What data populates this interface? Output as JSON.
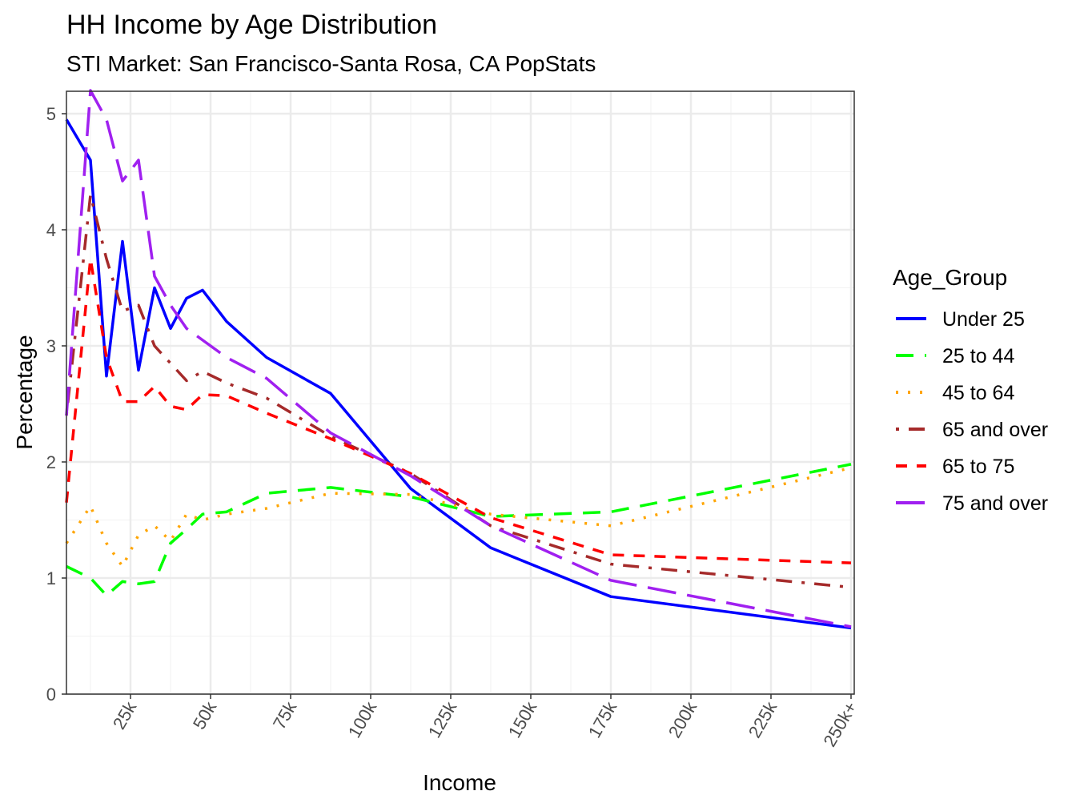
{
  "chart_data": {
    "type": "line",
    "title": "HH Income by Age Distribution",
    "subtitle": "STI Market: San Francisco-Santa Rosa, CA PopStats",
    "xlabel": "Income",
    "ylabel": "Percentage",
    "xlim": [
      5,
      250
    ],
    "ylim": [
      0,
      5.2
    ],
    "x_ticks": [
      25,
      50,
      75,
      100,
      125,
      150,
      175,
      200,
      225,
      250
    ],
    "x_tick_labels": [
      "25k",
      "50k",
      "75k",
      "100k",
      "125k",
      "150k",
      "175k",
      "200k",
      "225k",
      "250k+"
    ],
    "y_ticks": [
      0,
      1,
      2,
      3,
      4,
      5
    ],
    "y_tick_labels": [
      "0",
      "1",
      "2",
      "3",
      "4",
      "5"
    ],
    "grid": true,
    "legend": {
      "title": "Age_Group",
      "position": "right"
    },
    "x": [
      5,
      12.5,
      17.5,
      22.5,
      27.5,
      32.5,
      37.5,
      42.5,
      47.5,
      55,
      67.5,
      87.5,
      112.5,
      137.5,
      175,
      250
    ],
    "series": [
      {
        "name": "Under 25",
        "color": "#0000FF",
        "dash": "solid",
        "values": [
          4.95,
          4.6,
          2.74,
          3.9,
          2.79,
          3.5,
          3.15,
          3.41,
          3.48,
          3.21,
          2.9,
          2.59,
          1.77,
          1.26,
          0.84,
          0.57
        ]
      },
      {
        "name": "25 to 44",
        "color": "#00FF00",
        "dash": "dashed",
        "values": [
          1.1,
          1.0,
          0.85,
          0.97,
          0.95,
          0.97,
          1.3,
          1.42,
          1.55,
          1.57,
          1.73,
          1.78,
          1.7,
          1.53,
          1.57,
          1.98
        ]
      },
      {
        "name": "45 to 64",
        "color": "#FFA500",
        "dash": "dotted",
        "values": [
          1.3,
          1.62,
          1.3,
          1.1,
          1.37,
          1.45,
          1.32,
          1.55,
          1.5,
          1.55,
          1.6,
          1.73,
          1.72,
          1.55,
          1.45,
          1.95
        ]
      },
      {
        "name": "65 and over",
        "color": "#A52A2A",
        "dash": "dotdash",
        "values": [
          2.4,
          4.3,
          3.75,
          3.3,
          3.35,
          3.0,
          2.85,
          2.7,
          2.78,
          2.68,
          2.55,
          2.22,
          1.9,
          1.45,
          1.12,
          0.92
        ]
      },
      {
        "name": "65 to 75",
        "color": "#FF0000",
        "dash": "shortdash",
        "values": [
          1.65,
          3.75,
          2.9,
          2.52,
          2.52,
          2.65,
          2.48,
          2.45,
          2.58,
          2.57,
          2.42,
          2.2,
          1.9,
          1.52,
          1.2,
          1.13
        ]
      },
      {
        "name": "75 and over",
        "color": "#A020F0",
        "dash": "longdash",
        "values": [
          2.4,
          5.2,
          4.95,
          4.42,
          4.6,
          3.6,
          3.35,
          3.15,
          3.05,
          2.9,
          2.72,
          2.25,
          1.88,
          1.45,
          0.98,
          0.58
        ]
      }
    ]
  }
}
